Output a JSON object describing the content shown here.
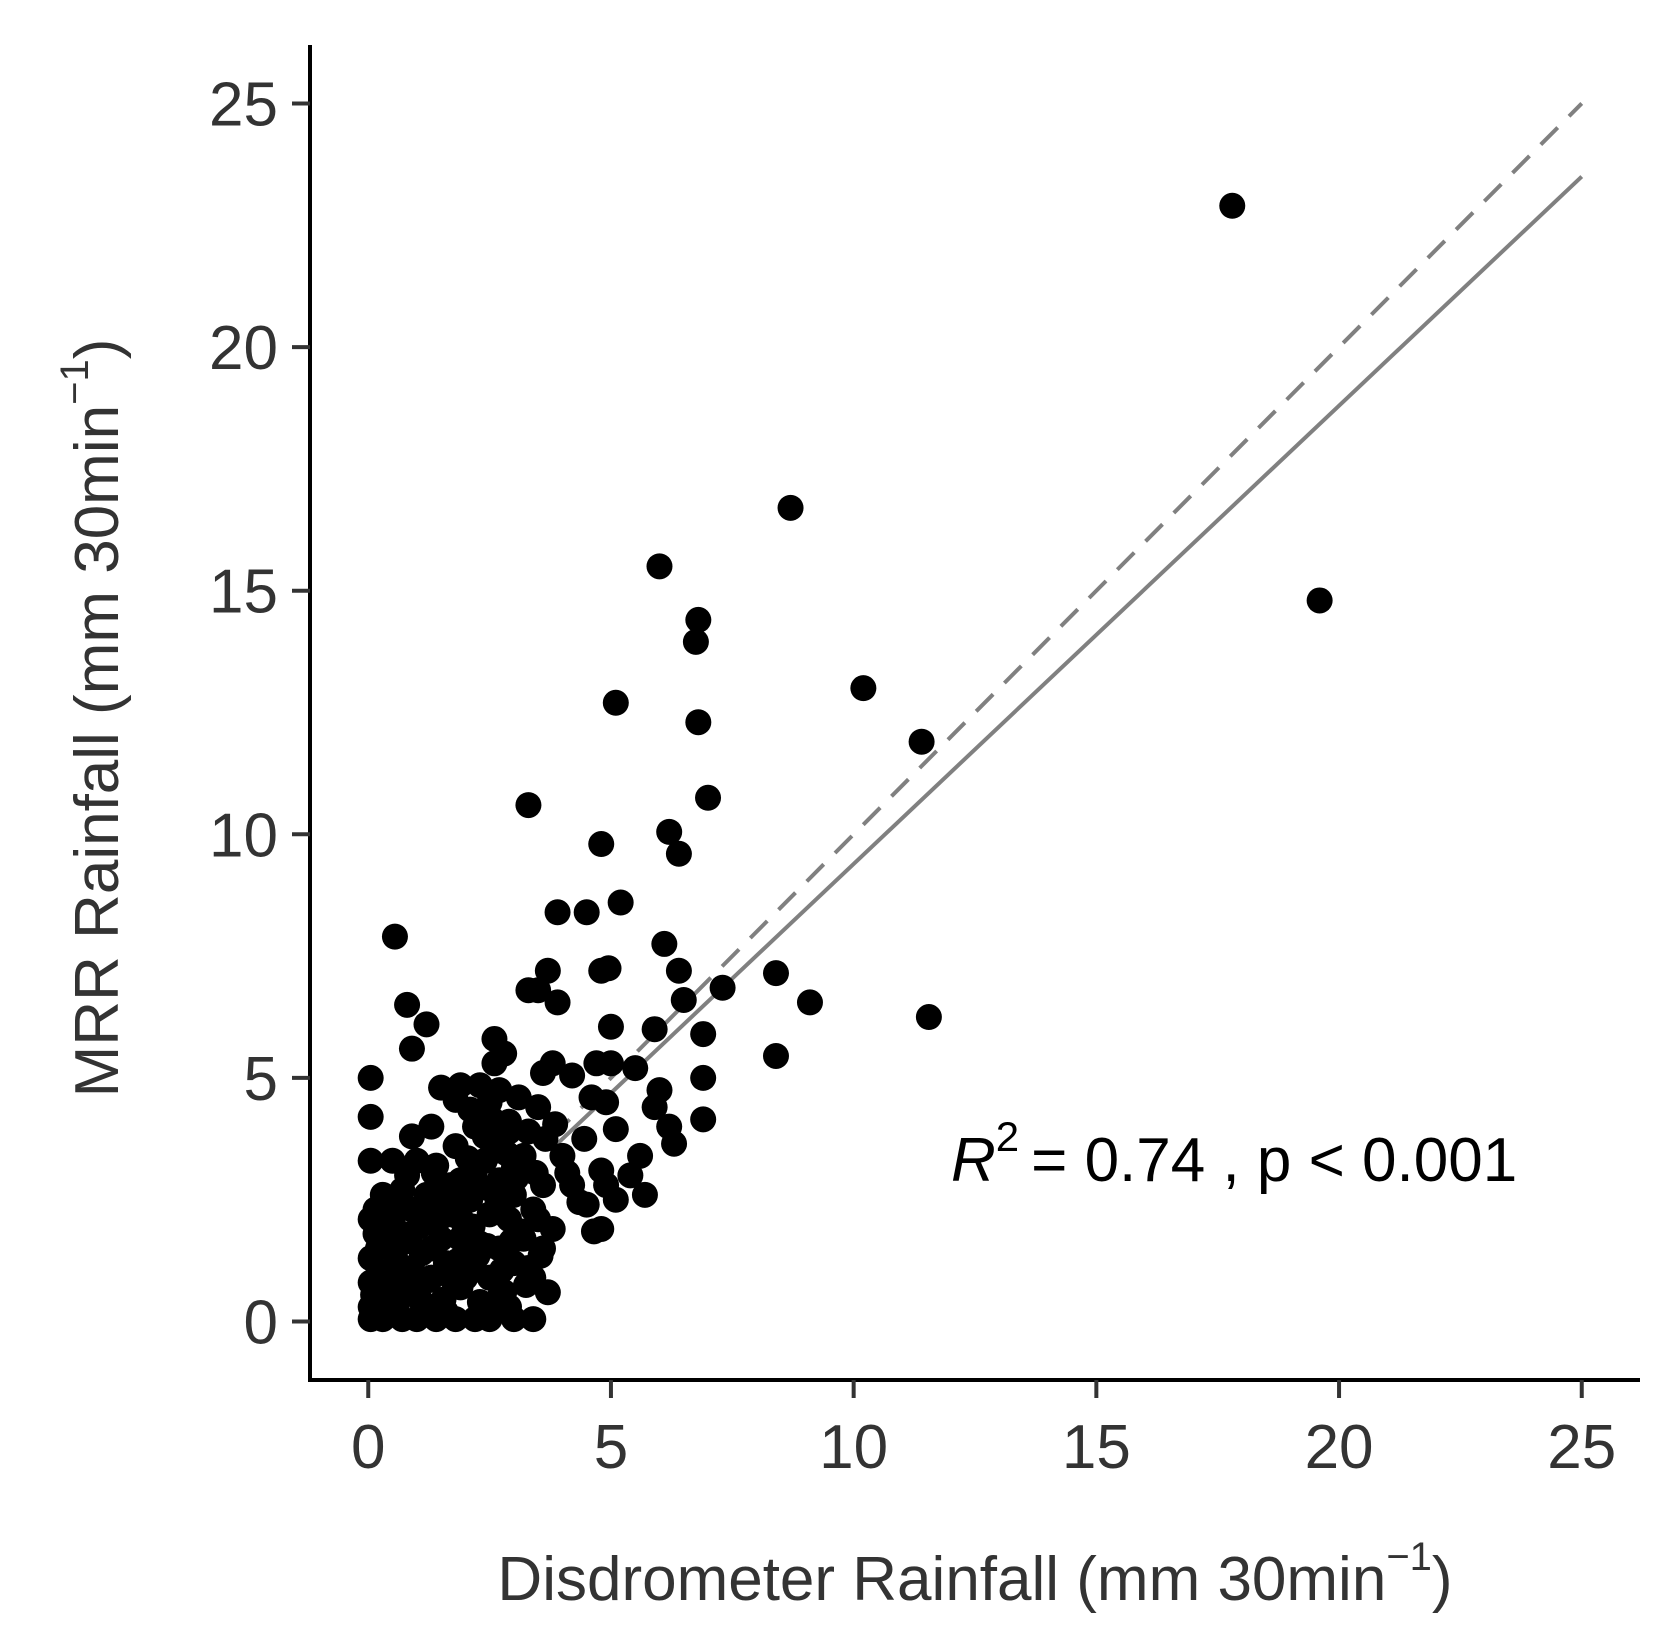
{
  "chart_data": {
    "type": "scatter",
    "xlabel": "Disdrometer Rainfall (mm 30min⁻¹)",
    "xlabel_parts": {
      "main": "Disdrometer Rainfall (mm 30min",
      "sup": "−1",
      "close": ")"
    },
    "ylabel": "MRR Rainfall (mm 30min⁻¹)",
    "ylabel_parts": {
      "main": "MRR Rainfall (mm 30min",
      "sup": "−1",
      "close": ")"
    },
    "xlim": [
      -1.2,
      26.2
    ],
    "ylim": [
      -1.2,
      26.2
    ],
    "x_ticks": [
      "0",
      "5",
      "10",
      "15",
      "20",
      "25"
    ],
    "y_ticks": [
      "0",
      "5",
      "10",
      "15",
      "20",
      "25"
    ],
    "grid": false,
    "annotation": {
      "r2_symbol": "R",
      "r2_sup": "2",
      "text": "= 0.74 , p < 0.001"
    },
    "lines": [
      {
        "kind": "fit",
        "style": "solid",
        "color": "#808080",
        "x": [
          3.8,
          25
        ],
        "y": [
          3.56,
          23.5
        ]
      },
      {
        "kind": "1:1",
        "style": "dashed",
        "color": "#808080",
        "x": [
          3.8,
          25
        ],
        "y": [
          3.8,
          25
        ]
      }
    ],
    "marker_color": "#000000",
    "points": [
      [
        17.8,
        22.9
      ],
      [
        19.6,
        14.8
      ],
      [
        8.7,
        16.7
      ],
      [
        6.0,
        15.5
      ],
      [
        6.8,
        14.4
      ],
      [
        6.75,
        13.95
      ],
      [
        10.2,
        13.0
      ],
      [
        5.1,
        12.7
      ],
      [
        6.8,
        12.3
      ],
      [
        11.4,
        11.9
      ],
      [
        3.3,
        10.6
      ],
      [
        7.0,
        10.75
      ],
      [
        6.2,
        10.05
      ],
      [
        6.4,
        9.6
      ],
      [
        4.8,
        9.8
      ],
      [
        5.2,
        8.6
      ],
      [
        3.9,
        8.4
      ],
      [
        4.5,
        8.4
      ],
      [
        0.55,
        7.9
      ],
      [
        6.1,
        7.75
      ],
      [
        3.7,
        7.2
      ],
      [
        4.8,
        7.2
      ],
      [
        4.95,
        7.25
      ],
      [
        6.4,
        7.2
      ],
      [
        7.3,
        6.85
      ],
      [
        3.3,
        6.8
      ],
      [
        3.5,
        6.8
      ],
      [
        8.4,
        7.15
      ],
      [
        9.1,
        6.55
      ],
      [
        6.5,
        6.6
      ],
      [
        0.8,
        6.5
      ],
      [
        1.2,
        6.1
      ],
      [
        3.9,
        6.55
      ],
      [
        5.0,
        6.05
      ],
      [
        5.9,
        6.0
      ],
      [
        6.9,
        5.9
      ],
      [
        11.55,
        6.25
      ],
      [
        2.6,
        5.8
      ],
      [
        0.9,
        5.6
      ],
      [
        2.8,
        5.5
      ],
      [
        2.6,
        5.3
      ],
      [
        4.7,
        5.3
      ],
      [
        5.0,
        5.3
      ],
      [
        5.5,
        5.2
      ],
      [
        3.8,
        5.3
      ],
      [
        8.4,
        5.45
      ],
      [
        4.2,
        5.05
      ],
      [
        3.6,
        5.1
      ],
      [
        0.05,
        5.0
      ],
      [
        6.9,
        5.0
      ],
      [
        1.5,
        4.8
      ],
      [
        1.9,
        4.85
      ],
      [
        2.3,
        4.85
      ],
      [
        4.6,
        4.6
      ],
      [
        6.0,
        4.75
      ],
      [
        2.5,
        4.5
      ],
      [
        3.5,
        4.4
      ],
      [
        1.8,
        4.55
      ],
      [
        5.9,
        4.4
      ],
      [
        4.9,
        4.5
      ],
      [
        0.05,
        4.2
      ],
      [
        1.3,
        4.0
      ],
      [
        0.9,
        3.8
      ],
      [
        6.2,
        4.0
      ],
      [
        6.9,
        4.15
      ],
      [
        2.2,
        4.0
      ],
      [
        2.9,
        4.1
      ],
      [
        5.1,
        3.95
      ],
      [
        6.3,
        3.65
      ],
      [
        3.3,
        3.9
      ],
      [
        2.7,
        3.7
      ],
      [
        4.0,
        3.4
      ],
      [
        5.6,
        3.4
      ],
      [
        0.5,
        3.3
      ],
      [
        0.05,
        3.3
      ],
      [
        1.4,
        3.2
      ],
      [
        2.4,
        3.3
      ],
      [
        3.1,
        3.25
      ],
      [
        4.8,
        3.1
      ],
      [
        5.4,
        3.0
      ],
      [
        0.8,
        3.0
      ],
      [
        1.9,
        2.9
      ],
      [
        2.7,
        2.9
      ],
      [
        3.6,
        2.8
      ],
      [
        4.2,
        2.8
      ],
      [
        4.9,
        2.8
      ],
      [
        0.3,
        2.6
      ],
      [
        1.2,
        2.6
      ],
      [
        2.1,
        2.5
      ],
      [
        3.0,
        2.6
      ],
      [
        5.7,
        2.6
      ],
      [
        5.1,
        2.5
      ],
      [
        4.5,
        2.4
      ],
      [
        0.9,
        2.3
      ],
      [
        1.7,
        2.2
      ],
      [
        2.5,
        2.2
      ],
      [
        3.4,
        2.3
      ],
      [
        0.05,
        2.1
      ],
      [
        0.4,
        2.0
      ],
      [
        1.4,
        2.0
      ],
      [
        2.9,
        2.1
      ],
      [
        4.8,
        1.9
      ],
      [
        3.8,
        1.9
      ],
      [
        0.7,
        1.8
      ],
      [
        1.9,
        1.7
      ],
      [
        2.3,
        1.6
      ],
      [
        3.2,
        1.7
      ],
      [
        0.2,
        1.5
      ],
      [
        1.1,
        1.4
      ],
      [
        2.7,
        1.5
      ],
      [
        3.6,
        1.5
      ],
      [
        0.05,
        1.3
      ],
      [
        0.6,
        1.2
      ],
      [
        1.6,
        1.2
      ],
      [
        2.1,
        1.1
      ],
      [
        3.0,
        1.2
      ],
      [
        0.3,
        1.0
      ],
      [
        1.3,
        0.9
      ],
      [
        2.5,
        0.9
      ],
      [
        3.4,
        0.9
      ],
      [
        0.05,
        0.8
      ],
      [
        0.8,
        0.7
      ],
      [
        1.9,
        0.7
      ],
      [
        2.8,
        0.6
      ],
      [
        3.7,
        0.6
      ],
      [
        0.2,
        0.5
      ],
      [
        1.1,
        0.4
      ],
      [
        2.3,
        0.4
      ],
      [
        0.05,
        0.3
      ],
      [
        0.6,
        0.2
      ],
      [
        1.6,
        0.2
      ],
      [
        2.9,
        0.3
      ],
      [
        0.05,
        0.05
      ],
      [
        0.3,
        0.05
      ],
      [
        0.7,
        0.05
      ],
      [
        1.0,
        0.05
      ],
      [
        1.4,
        0.05
      ],
      [
        1.8,
        0.05
      ],
      [
        2.2,
        0.05
      ],
      [
        2.5,
        0.05
      ],
      [
        3.0,
        0.05
      ],
      [
        3.4,
        0.05
      ],
      [
        0.5,
        0.6
      ],
      [
        0.9,
        1.1
      ],
      [
        1.5,
        1.7
      ],
      [
        2.0,
        2.6
      ],
      [
        0.4,
        1.6
      ],
      [
        1.7,
        2.8
      ],
      [
        2.6,
        3.5
      ],
      [
        2.9,
        3.9
      ],
      [
        3.1,
        4.6
      ],
      [
        2.4,
        3.8
      ],
      [
        1.2,
        2.4
      ],
      [
        0.2,
        0.9
      ],
      [
        0.15,
        1.8
      ],
      [
        1.0,
        3.3
      ],
      [
        0.7,
        2.7
      ],
      [
        1.8,
        3.6
      ],
      [
        2.2,
        3.1
      ],
      [
        2.8,
        2.2
      ],
      [
        3.2,
        3.4
      ],
      [
        3.5,
        2.1
      ],
      [
        1.3,
        1.5
      ],
      [
        2.0,
        0.9
      ],
      [
        2.7,
        0.5
      ],
      [
        3.3,
        1.1
      ],
      [
        0.35,
        0.35
      ],
      [
        0.55,
        1.4
      ],
      [
        0.95,
        0.55
      ],
      [
        1.25,
        0.85
      ],
      [
        1.55,
        0.45
      ],
      [
        1.85,
        1.25
      ],
      [
        2.15,
        1.95
      ],
      [
        2.45,
        1.55
      ],
      [
        2.65,
        2.55
      ],
      [
        3.05,
        2.95
      ],
      [
        0.15,
        2.3
      ],
      [
        0.45,
        2.45
      ],
      [
        1.05,
        1.95
      ],
      [
        1.65,
        2.35
      ],
      [
        2.05,
        3.35
      ],
      [
        2.35,
        2.75
      ],
      [
        2.55,
        4.15
      ],
      [
        2.85,
        3.45
      ],
      [
        3.15,
        1.85
      ],
      [
        3.45,
        3.05
      ],
      [
        3.65,
        3.75
      ],
      [
        0.25,
        0.15
      ],
      [
        0.65,
        0.95
      ],
      [
        1.15,
        0.25
      ],
      [
        1.45,
        2.75
      ],
      [
        1.75,
        0.85
      ],
      [
        2.25,
        1.35
      ],
      [
        2.75,
        1.05
      ],
      [
        3.25,
        0.75
      ],
      [
        3.55,
        1.35
      ],
      [
        0.85,
        1.65
      ],
      [
        1.95,
        2.05
      ],
      [
        2.95,
        1.65
      ],
      [
        0.1,
        0.55
      ],
      [
        0.5,
        2.05
      ],
      [
        1.35,
        3.05
      ],
      [
        2.1,
        4.35
      ],
      [
        2.7,
        4.75
      ],
      [
        3.0,
        3.15
      ],
      [
        3.85,
        4.05
      ],
      [
        4.1,
        3.05
      ],
      [
        4.35,
        2.45
      ],
      [
        4.45,
        3.75
      ],
      [
        4.65,
        1.85
      ]
    ]
  }
}
